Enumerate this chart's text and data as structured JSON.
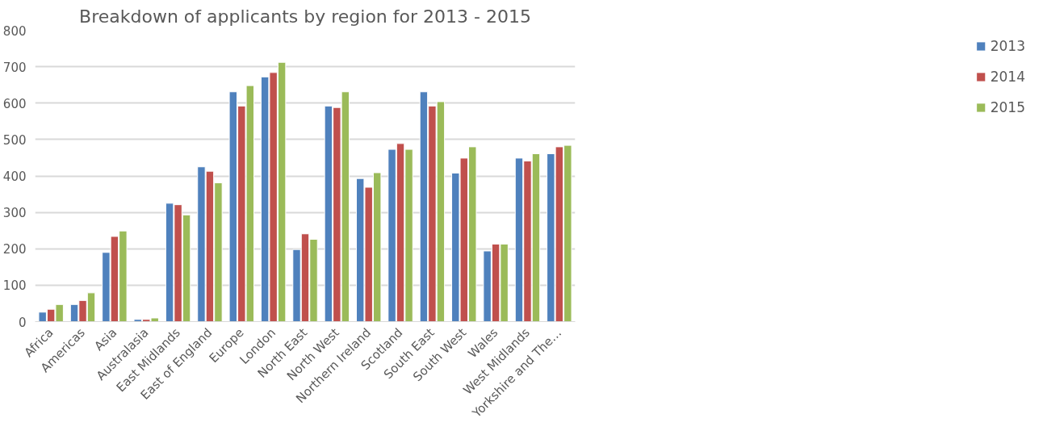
{
  "chart_data": {
    "type": "bar",
    "title": "Breakdown of applicants by region for 2013 - 2015",
    "categories": [
      "Africa",
      "Americas",
      "Asia",
      "Australasia",
      "East Midlands",
      "East of England",
      "Europe",
      "London",
      "North East",
      "North West",
      "Northern Ireland",
      "Scotland",
      "South East",
      "South West",
      "Wales",
      "West Midlands",
      "Yorkshire and The…"
    ],
    "series": [
      {
        "name": "2013",
        "color": "#4f81bd",
        "values": [
          26,
          47,
          190,
          6,
          325,
          425,
          631,
          672,
          198,
          592,
          393,
          473,
          631,
          408,
          194,
          449,
          461
        ]
      },
      {
        "name": "2014",
        "color": "#c0504d",
        "values": [
          34,
          58,
          234,
          6,
          321,
          413,
          592,
          684,
          241,
          588,
          369,
          489,
          592,
          449,
          213,
          441,
          480
        ]
      },
      {
        "name": "2015",
        "color": "#9bbb59",
        "values": [
          47,
          79,
          249,
          10,
          293,
          381,
          648,
          712,
          226,
          631,
          409,
          473,
          604,
          480,
          213,
          461,
          484
        ]
      }
    ],
    "ylim": [
      0,
      800
    ],
    "yticks": [
      0,
      100,
      200,
      300,
      400,
      500,
      600,
      700,
      800
    ],
    "grid": "y",
    "legend": "right"
  }
}
